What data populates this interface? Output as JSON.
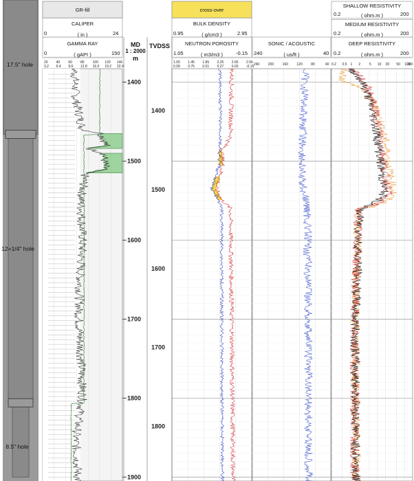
{
  "hole_sections": [
    {
      "label": "17.5\" hole",
      "from": 1383,
      "to": 1466
    },
    {
      "label": "12+1/4\" hole",
      "from": 1466,
      "to": 1806
    },
    {
      "label": "8.5\" hole",
      "from": 1806,
      "to": 1900
    }
  ],
  "track1": {
    "header_fill": "GR-fill",
    "caliper": {
      "title": "CALIPER",
      "min": "0",
      "unit": "( in )",
      "max": "24"
    },
    "gamma": {
      "title": "GAMMA RAY",
      "min": "0",
      "unit": "( gAPI )",
      "max": "150"
    },
    "scale_a": [
      "20",
      "40",
      "60",
      "80",
      "100",
      "120",
      "140"
    ],
    "scale_b": [
      "3.2",
      "6.4",
      "9.6",
      "12.8",
      "16.0",
      "19.2",
      "22.4"
    ]
  },
  "md_header": {
    "title": "MD",
    "ratio": "1 : 2000",
    "unit": "m"
  },
  "tvdss_header": "TVDSS",
  "track3": {
    "crossover_label": "cross-over",
    "bulk_density": {
      "title": "BULK DENSITY",
      "min": "0.95",
      "unit": "( g/cm3 )",
      "max": "2.95"
    },
    "neutron": {
      "title": "NEUTRON POROSITY",
      "min": "1.05",
      "unit": "( m3/m3 )",
      "max": "-0.15"
    },
    "scale_a": [
      "1.05",
      "1.45",
      "1.85",
      "2.25",
      "2.65",
      "2.95"
    ],
    "scale_b": [
      "0.99",
      "0.75",
      "0.51",
      "0.27",
      "0.03",
      "-0.15"
    ]
  },
  "track4": {
    "title": "SONIC / ACOUSTIC",
    "min": "240",
    "unit": "( us/ft )",
    "max": "40",
    "scale": [
      "240",
      "200",
      "160",
      "120",
      "80",
      "40"
    ]
  },
  "track5": {
    "shallow": {
      "title": "SHALLOW RESISTIVITY",
      "min": "0.2",
      "unit": "( ohm.m )",
      "max": "200"
    },
    "medium": {
      "title": "MEDIUM RESISTIVITY",
      "min": "0.2",
      "unit": "( ohm.m )",
      "max": "200"
    },
    "deep": {
      "title": "DEEP RESISTIVITY",
      "min": "0.2",
      "unit": "( ohm.m )",
      "max": "200"
    },
    "scale": [
      "0.2",
      "0.5",
      "1",
      "2",
      "5",
      "10",
      "20",
      "50",
      "100",
      "200"
    ]
  },
  "chart_data": {
    "type": "line",
    "title": "",
    "y_axis": "depth (m)",
    "md_ticks": [
      1400,
      1500,
      1600,
      1700,
      1800,
      1900
    ],
    "tvdss_ticks": [
      1400,
      1500,
      1600,
      1700,
      1800,
      1900
    ],
    "depth_range": [
      1383,
      1905
    ],
    "crossover_zones": [
      [
        1487,
        1505
      ],
      [
        1520,
        1549
      ]
    ],
    "gr_fill_zones": [
      [
        1465,
        1484
      ],
      [
        1490,
        1515
      ]
    ],
    "series": [
      {
        "name": "GAMMA RAY",
        "track": 1,
        "color": "#333333",
        "profile": [
          [
            1383,
            60
          ],
          [
            1420,
            62
          ],
          [
            1460,
            75
          ],
          [
            1465,
            110
          ],
          [
            1480,
            120
          ],
          [
            1484,
            85
          ],
          [
            1490,
            115
          ],
          [
            1510,
            118
          ],
          [
            1515,
            80
          ],
          [
            1550,
            72
          ],
          [
            1600,
            75
          ],
          [
            1650,
            70
          ],
          [
            1700,
            68
          ],
          [
            1750,
            72
          ],
          [
            1800,
            75
          ],
          [
            1850,
            62
          ],
          [
            1900,
            66
          ]
        ]
      },
      {
        "name": "CALIPER",
        "track": 1,
        "color": "#2e7d32",
        "profile": [
          [
            1383,
            17.2
          ],
          [
            1466,
            17.2
          ],
          [
            1467,
            12.4
          ],
          [
            1600,
            12.5
          ],
          [
            1806,
            12.4
          ],
          [
            1807,
            8.6
          ],
          [
            1905,
            8.6
          ]
        ]
      },
      {
        "name": "BULK DENSITY",
        "track": 3,
        "color": "#d33a3a",
        "profile": [
          [
            1383,
            2.45
          ],
          [
            1470,
            2.42
          ],
          [
            1487,
            2.2
          ],
          [
            1505,
            2.22
          ],
          [
            1520,
            2.15
          ],
          [
            1535,
            2.05
          ],
          [
            1549,
            2.2
          ],
          [
            1560,
            2.42
          ],
          [
            1700,
            2.45
          ],
          [
            1900,
            2.48
          ]
        ]
      },
      {
        "name": "NEUTRON POROSITY",
        "track": 3,
        "color": "#3b4bbf",
        "profile": [
          [
            1383,
            0.33
          ],
          [
            1470,
            0.32
          ],
          [
            1487,
            0.34
          ],
          [
            1505,
            0.34
          ],
          [
            1520,
            0.4
          ],
          [
            1535,
            0.45
          ],
          [
            1549,
            0.36
          ],
          [
            1560,
            0.3
          ],
          [
            1700,
            0.3
          ],
          [
            1900,
            0.29
          ]
        ]
      },
      {
        "name": "SONIC / ACOUSTIC",
        "track": 4,
        "color": "#4a5fd0",
        "profile": [
          [
            1383,
            105
          ],
          [
            1450,
            110
          ],
          [
            1520,
            115
          ],
          [
            1560,
            100
          ],
          [
            1700,
            98
          ],
          [
            1900,
            96
          ]
        ]
      },
      {
        "name": "SHALLOW RESISTIVITY",
        "track": 5,
        "color": "#f0a040",
        "profile": [
          [
            1383,
            0.6
          ],
          [
            1400,
            0.5
          ],
          [
            1520,
            30
          ],
          [
            1540,
            40
          ],
          [
            1560,
            2
          ],
          [
            1700,
            1.5
          ],
          [
            1900,
            1.6
          ]
        ]
      },
      {
        "name": "MEDIUM RESISTIVITY",
        "track": 5,
        "color": "#d33a3a",
        "profile": [
          [
            1383,
            0.8
          ],
          [
            1520,
            20
          ],
          [
            1540,
            25
          ],
          [
            1560,
            2
          ],
          [
            1700,
            1.4
          ],
          [
            1900,
            1.5
          ]
        ]
      },
      {
        "name": "DEEP RESISTIVITY",
        "track": 5,
        "color": "#111111",
        "profile": [
          [
            1383,
            0.9
          ],
          [
            1520,
            15
          ],
          [
            1540,
            18
          ],
          [
            1560,
            2.2
          ],
          [
            1700,
            1.5
          ],
          [
            1900,
            1.6
          ]
        ]
      }
    ]
  }
}
